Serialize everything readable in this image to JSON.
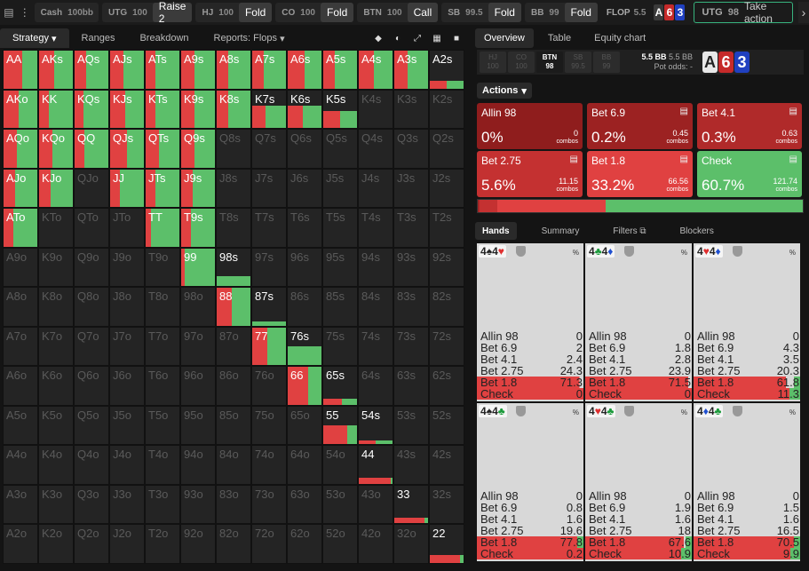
{
  "topbar": {
    "menu_icon": "vertical-dots-icon",
    "game": {
      "label": "Cash",
      "stack": "100bb"
    },
    "positions": [
      {
        "pos": "UTG",
        "stack": "100",
        "action": "Raise 2"
      },
      {
        "pos": "HJ",
        "stack": "100",
        "action": "Fold"
      },
      {
        "pos": "CO",
        "stack": "100",
        "action": "Fold"
      },
      {
        "pos": "BTN",
        "stack": "100",
        "action": "Call"
      },
      {
        "pos": "SB",
        "stack": "99.5",
        "action": "Fold"
      },
      {
        "pos": "BB",
        "stack": "99",
        "action": "Fold"
      }
    ],
    "flop": {
      "label": "FLOP",
      "pot": "5.5",
      "cards": [
        "A",
        "6",
        "3"
      ]
    },
    "take_action": {
      "pos": "UTG",
      "stack": "98",
      "label": "Take action"
    }
  },
  "left_tabs": {
    "strategy": "Strategy",
    "ranges": "Ranges",
    "breakdown": "Breakdown",
    "reports": "Reports: Flops"
  },
  "right_tabs": {
    "overview": "Overview",
    "table": "Table",
    "equity": "Equity chart"
  },
  "position_bar": {
    "slots": [
      {
        "pos": "HJ",
        "stack": "100"
      },
      {
        "pos": "CO",
        "stack": "100"
      },
      {
        "pos": "BTN",
        "stack": "98"
      },
      {
        "pos": "SB",
        "stack": "99.5"
      },
      {
        "pos": "BB",
        "stack": "99"
      }
    ],
    "pot_bb": "5.5 BB",
    "pot_bb2": "5.5 BB",
    "pot_odds": "Pot odds: -",
    "board": [
      "A",
      "6",
      "3"
    ]
  },
  "actions_label": "Actions",
  "actions": [
    {
      "name": "Allin 98",
      "pct": "0%",
      "combos": "0",
      "color": "#8f1d1d"
    },
    {
      "name": "Bet 6.9",
      "pct": "0.2%",
      "combos": "0.45",
      "color": "#9c2222"
    },
    {
      "name": "Bet 4.1",
      "pct": "0.3%",
      "combos": "0.63",
      "color": "#b02a2a"
    },
    {
      "name": "Bet 2.75",
      "pct": "5.6%",
      "combos": "11.15",
      "color": "#c43131"
    },
    {
      "name": "Bet 1.8",
      "pct": "33.2%",
      "combos": "66.56",
      "color": "#e04141"
    },
    {
      "name": "Check",
      "pct": "60.7%",
      "combos": "121.74",
      "color": "#5cbf6a"
    }
  ],
  "combos_word": "combos",
  "hand_tabs": {
    "hands": "Hands",
    "summary": "Summary",
    "filters": "Filters",
    "blockers": "Blockers"
  },
  "hands": [
    {
      "cards": [
        [
          "4",
          "♠",
          "#222"
        ],
        [
          "4",
          "♥",
          "#e03030"
        ]
      ],
      "vals": [
        "0",
        "2",
        "2.4",
        "24.3",
        "71.3",
        "0"
      ],
      "bet18": 71.3,
      "check": 0
    },
    {
      "cards": [
        [
          "4",
          "♣",
          "#1a9a3a"
        ],
        [
          "4",
          "♦",
          "#2050d0"
        ]
      ],
      "vals": [
        "0",
        "1.8",
        "2.8",
        "23.9",
        "71.5",
        "0"
      ],
      "bet18": 71.5,
      "check": 0
    },
    {
      "cards": [
        [
          "4",
          "♥",
          "#e03030"
        ],
        [
          "4",
          "♦",
          "#2050d0"
        ]
      ],
      "vals": [
        "0",
        "4.3",
        "3.5",
        "20.3",
        "61.8",
        "11.3"
      ],
      "bet18": 61.8,
      "check": 11.3
    },
    {
      "cards": [
        [
          "4",
          "♠",
          "#222"
        ],
        [
          "4",
          "♣",
          "#1a9a3a"
        ]
      ],
      "vals": [
        "0",
        "0.8",
        "1.6",
        "19.6",
        "77.8",
        "0.2"
      ],
      "bet18": 77.8,
      "check": 0.2
    },
    {
      "cards": [
        [
          "4",
          "♥",
          "#e03030"
        ],
        [
          "4",
          "♣",
          "#1a9a3a"
        ]
      ],
      "vals": [
        "0",
        "1.9",
        "1.6",
        "18",
        "67.6",
        "10.9"
      ],
      "bet18": 67.6,
      "check": 10.9
    },
    {
      "cards": [
        [
          "4",
          "♦",
          "#2050d0"
        ],
        [
          "4",
          "♣",
          "#1a9a3a"
        ]
      ],
      "vals": [
        "0",
        "1.5",
        "1.6",
        "16.5",
        "70.5",
        "9.9"
      ],
      "bet18": 70.5,
      "check": 9.9
    }
  ],
  "hand_row_names": [
    "Allin 98",
    "Bet 6.9",
    "Bet 4.1",
    "Bet 2.75",
    "Bet 1.8",
    "Check"
  ],
  "pct_symbol": "%",
  "grid": {
    "labels": [
      [
        "AA",
        "AKs",
        "AQs",
        "AJs",
        "ATs",
        "A9s",
        "A8s",
        "A7s",
        "A6s",
        "A5s",
        "A4s",
        "A3s",
        "A2s"
      ],
      [
        "AKo",
        "KK",
        "KQs",
        "KJs",
        "KTs",
        "K9s",
        "K8s",
        "K7s",
        "K6s",
        "K5s",
        "K4s",
        "K3s",
        "K2s"
      ],
      [
        "AQo",
        "KQo",
        "QQ",
        "QJs",
        "QTs",
        "Q9s",
        "Q8s",
        "Q7s",
        "Q6s",
        "Q5s",
        "Q4s",
        "Q3s",
        "Q2s"
      ],
      [
        "AJo",
        "KJo",
        "QJo",
        "JJ",
        "JTs",
        "J9s",
        "J8s",
        "J7s",
        "J6s",
        "J5s",
        "J4s",
        "J3s",
        "J2s"
      ],
      [
        "ATo",
        "KTo",
        "QTo",
        "JTo",
        "TT",
        "T9s",
        "T8s",
        "T7s",
        "T6s",
        "T5s",
        "T4s",
        "T3s",
        "T2s"
      ],
      [
        "A9o",
        "K9o",
        "Q9o",
        "J9o",
        "T9o",
        "99",
        "98s",
        "97s",
        "96s",
        "95s",
        "94s",
        "93s",
        "92s"
      ],
      [
        "A8o",
        "K8o",
        "Q8o",
        "J8o",
        "T8o",
        "98o",
        "88",
        "87s",
        "86s",
        "85s",
        "84s",
        "83s",
        "82s"
      ],
      [
        "A7o",
        "K7o",
        "Q7o",
        "J7o",
        "T7o",
        "97o",
        "87o",
        "77",
        "76s",
        "75s",
        "74s",
        "73s",
        "72s"
      ],
      [
        "A6o",
        "K6o",
        "Q6o",
        "J6o",
        "T6o",
        "96o",
        "86o",
        "76o",
        "66",
        "65s",
        "64s",
        "63s",
        "62s"
      ],
      [
        "A5o",
        "K5o",
        "Q5o",
        "J5o",
        "T5o",
        "95o",
        "85o",
        "75o",
        "65o",
        "55",
        "54s",
        "53s",
        "52s"
      ],
      [
        "A4o",
        "K4o",
        "Q4o",
        "J4o",
        "T4o",
        "94o",
        "84o",
        "74o",
        "64o",
        "54o",
        "44",
        "43s",
        "42s"
      ],
      [
        "A3o",
        "K3o",
        "Q3o",
        "J3o",
        "T3o",
        "93o",
        "83o",
        "73o",
        "63o",
        "53o",
        "43o",
        "33",
        "32s"
      ],
      [
        "A2o",
        "K2o",
        "Q2o",
        "J2o",
        "T2o",
        "92o",
        "82o",
        "72o",
        "62o",
        "52o",
        "42o",
        "32o",
        "22"
      ]
    ],
    "range": [
      [
        1,
        1,
        1,
        1,
        1,
        1,
        1,
        1,
        1,
        1,
        1,
        1,
        0.2
      ],
      [
        1,
        1,
        1,
        1,
        1,
        1,
        1,
        0.6,
        0.6,
        0.45,
        0,
        0,
        0
      ],
      [
        1,
        1,
        1,
        1,
        1,
        1,
        0,
        0,
        0,
        0,
        0,
        0,
        0
      ],
      [
        1,
        1,
        0,
        1,
        1,
        1,
        0,
        0,
        0,
        0,
        0,
        0,
        0
      ],
      [
        1,
        0,
        0,
        0,
        1,
        1,
        0,
        0,
        0,
        0,
        0,
        0,
        0
      ],
      [
        0,
        0,
        0,
        0,
        0,
        1,
        0.25,
        0,
        0,
        0,
        0,
        0,
        0
      ],
      [
        0,
        0,
        0,
        0,
        0,
        0,
        1,
        0.1,
        0,
        0,
        0,
        0,
        0
      ],
      [
        0,
        0,
        0,
        0,
        0,
        0,
        0,
        1,
        0.5,
        0,
        0,
        0,
        0
      ],
      [
        0,
        0,
        0,
        0,
        0,
        0,
        0,
        0,
        1,
        0.15,
        0,
        0,
        0
      ],
      [
        0,
        0,
        0,
        0,
        0,
        0,
        0,
        0,
        0,
        0.5,
        0.1,
        0,
        0
      ],
      [
        0,
        0,
        0,
        0,
        0,
        0,
        0,
        0,
        0,
        0,
        0.15,
        0,
        0
      ],
      [
        0,
        0,
        0,
        0,
        0,
        0,
        0,
        0,
        0,
        0,
        0,
        0.15,
        0
      ],
      [
        0,
        0,
        0,
        0,
        0,
        0,
        0,
        0,
        0,
        0,
        0,
        0,
        0.2
      ]
    ],
    "bet": [
      [
        0.55,
        0.45,
        0.35,
        0.4,
        0.3,
        0.4,
        0.35,
        0.35,
        0.5,
        0.35,
        0.45,
        0.4,
        0.5
      ],
      [
        0.45,
        0.3,
        0.25,
        0.45,
        0.3,
        0.4,
        0.35,
        0.4,
        0.45,
        0.5,
        0,
        0,
        0
      ],
      [
        0.4,
        0.4,
        0.3,
        0.5,
        0.4,
        0.4,
        0,
        0,
        0,
        0,
        0,
        0,
        0
      ],
      [
        0.35,
        0.35,
        0.5,
        0.3,
        0.3,
        0.35,
        0,
        0,
        0,
        0,
        0,
        0,
        0
      ],
      [
        0.3,
        0.45,
        0,
        0,
        0.15,
        0.3,
        0,
        0,
        0,
        0,
        0,
        0,
        0
      ],
      [
        0,
        0,
        0,
        0,
        0,
        0.1,
        0,
        0,
        0,
        0,
        0,
        0,
        0
      ],
      [
        0,
        0,
        0,
        0,
        0,
        0,
        0.45,
        0,
        0,
        0,
        0,
        0,
        0
      ],
      [
        0,
        0,
        0,
        0,
        0,
        0,
        0,
        0.45,
        0,
        0,
        0,
        0,
        0
      ],
      [
        0,
        0,
        0,
        0,
        0,
        0,
        0,
        0,
        0.6,
        0.55,
        0,
        0,
        0
      ],
      [
        0,
        0,
        0,
        0,
        0,
        0,
        0,
        0,
        0,
        0.7,
        0.5,
        0,
        0
      ],
      [
        0,
        0,
        0,
        0,
        0,
        0,
        0,
        0,
        0,
        0,
        0.95,
        0,
        0
      ],
      [
        0,
        0,
        0,
        0,
        0,
        0,
        0,
        0,
        0,
        0,
        0,
        0.9,
        0
      ],
      [
        0,
        0,
        0,
        0,
        0,
        0,
        0,
        0,
        0,
        0,
        0,
        0,
        0.9
      ]
    ]
  },
  "colors": {
    "bet": "#e04141",
    "bet_dark": "#b52c2c",
    "check": "#5cbf6a",
    "card_a": "#3a3a3a",
    "card_6": "#c62a2a",
    "card_3": "#2040c0",
    "take_action_border": "#37b37e"
  }
}
